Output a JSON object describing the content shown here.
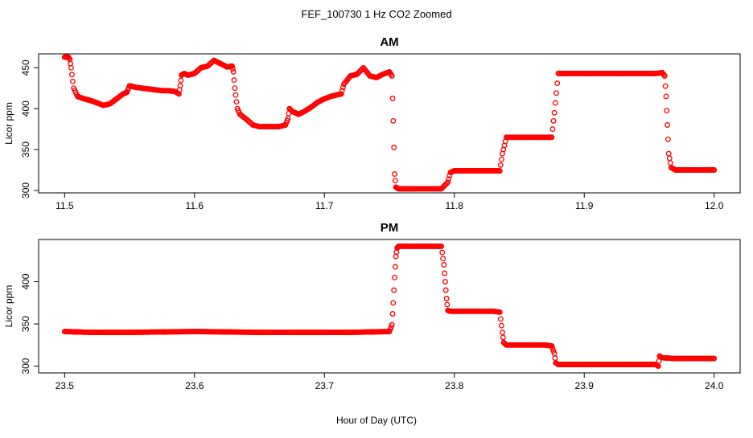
{
  "figure": {
    "title": "FEF_100730  1 Hz CO2 Zoomed",
    "xlabel": "Hour of Day (UTC)"
  },
  "colors": {
    "points": "#ff0000",
    "axes": "#000000"
  },
  "chart_data": [
    {
      "type": "scatter",
      "title": "AM",
      "xlabel": "",
      "ylabel": "Licor ppm",
      "xlim": [
        11.5,
        12.0
      ],
      "ylim": [
        297,
        467
      ],
      "x_ticks": [
        11.5,
        11.6,
        11.7,
        11.8,
        11.9,
        12.0
      ],
      "x_tick_labels": [
        "11.5",
        "11.6",
        "11.7",
        "11.8",
        "11.9",
        "12.0"
      ],
      "y_ticks": [
        300,
        350,
        400,
        450
      ],
      "y_tick_labels": [
        "300",
        "350",
        "400",
        "450"
      ],
      "grid": false,
      "marker": "open-circle",
      "series": [
        {
          "x": [
            11.5,
            11.503,
            11.504,
            11.505,
            11.507,
            11.51,
            11.515,
            11.52,
            11.525,
            11.53,
            11.535,
            11.54,
            11.545,
            11.548,
            11.55,
            11.555,
            11.56,
            11.565,
            11.57,
            11.575,
            11.58,
            11.585,
            11.588,
            11.589,
            11.59,
            11.592,
            11.595,
            11.6,
            11.605,
            11.61,
            11.615,
            11.62,
            11.625,
            11.629,
            11.63,
            11.631,
            11.633,
            11.635,
            11.64,
            11.645,
            11.65,
            11.655,
            11.66,
            11.665,
            11.67,
            11.672,
            11.673,
            11.675,
            11.68,
            11.685,
            11.69,
            11.695,
            11.7,
            11.705,
            11.71,
            11.713,
            11.715,
            11.72,
            11.725,
            11.73,
            11.735,
            11.74,
            11.745,
            11.75,
            11.752,
            11.753,
            11.754,
            11.755,
            11.757,
            11.76,
            11.77,
            11.78,
            11.79,
            11.795,
            11.797,
            11.8,
            11.81,
            11.82,
            11.83,
            11.835,
            11.837,
            11.84,
            11.85,
            11.86,
            11.87,
            11.875,
            11.877,
            11.88,
            11.89,
            11.9,
            11.91,
            11.92,
            11.93,
            11.94,
            11.95,
            11.955,
            11.96,
            11.962,
            11.963,
            11.964,
            11.965,
            11.967,
            11.97,
            11.98,
            11.99,
            12.0
          ],
          "y": [
            463,
            463,
            460,
            450,
            425,
            415,
            412,
            410,
            407,
            404,
            406,
            412,
            418,
            420,
            428,
            426,
            425,
            424,
            423,
            422,
            422,
            421,
            418,
            428,
            441,
            443,
            441,
            443,
            450,
            452,
            459,
            455,
            451,
            452,
            445,
            425,
            400,
            393,
            387,
            380,
            378,
            378,
            378,
            378,
            380,
            388,
            400,
            397,
            393,
            397,
            402,
            408,
            412,
            415,
            417,
            418,
            430,
            440,
            442,
            450,
            440,
            438,
            442,
            445,
            440,
            385,
            320,
            304,
            302,
            302,
            302,
            302,
            302,
            310,
            322,
            324,
            324,
            324,
            324,
            324,
            345,
            365,
            365,
            365,
            365,
            365,
            395,
            443,
            443,
            443,
            443,
            443,
            443,
            443,
            443,
            443,
            444,
            440,
            415,
            380,
            345,
            328,
            325,
            325,
            325,
            325
          ]
        }
      ]
    },
    {
      "type": "scatter",
      "title": "PM",
      "xlabel": "",
      "ylabel": "Licor ppm",
      "xlim": [
        23.5,
        24.0
      ],
      "ylim": [
        292,
        450
      ],
      "x_ticks": [
        23.5,
        23.6,
        23.7,
        23.8,
        23.9,
        24.0
      ],
      "x_tick_labels": [
        "23.5",
        "23.6",
        "23.7",
        "23.8",
        "23.9",
        "24.0"
      ],
      "y_ticks": [
        300,
        350,
        400
      ],
      "y_tick_labels": [
        "300",
        "350",
        "400"
      ],
      "grid": false,
      "marker": "open-circle",
      "series": [
        {
          "x": [
            23.5,
            23.52,
            23.55,
            23.6,
            23.65,
            23.7,
            23.72,
            23.75,
            23.752,
            23.753,
            23.754,
            23.755,
            23.756,
            23.757,
            23.76,
            23.77,
            23.78,
            23.79,
            23.792,
            23.793,
            23.794,
            23.795,
            23.797,
            23.8,
            23.81,
            23.82,
            23.83,
            23.835,
            23.837,
            23.838,
            23.84,
            23.85,
            23.86,
            23.87,
            23.875,
            23.877,
            23.878,
            23.88,
            23.89,
            23.9,
            23.91,
            23.92,
            23.93,
            23.94,
            23.95,
            23.955,
            23.957,
            23.958,
            23.96,
            23.97,
            23.98,
            23.99,
            24.0
          ],
          "y": [
            341,
            340,
            340,
            341,
            340,
            340,
            340,
            341,
            349,
            375,
            405,
            430,
            440,
            442,
            442,
            442,
            442,
            442,
            420,
            400,
            380,
            366,
            365,
            365,
            365,
            365,
            365,
            364,
            340,
            328,
            325,
            325,
            325,
            325,
            324,
            315,
            304,
            302,
            302,
            302,
            302,
            302,
            302,
            302,
            302,
            302,
            300,
            312,
            310,
            309,
            309,
            309,
            309
          ]
        }
      ]
    }
  ]
}
